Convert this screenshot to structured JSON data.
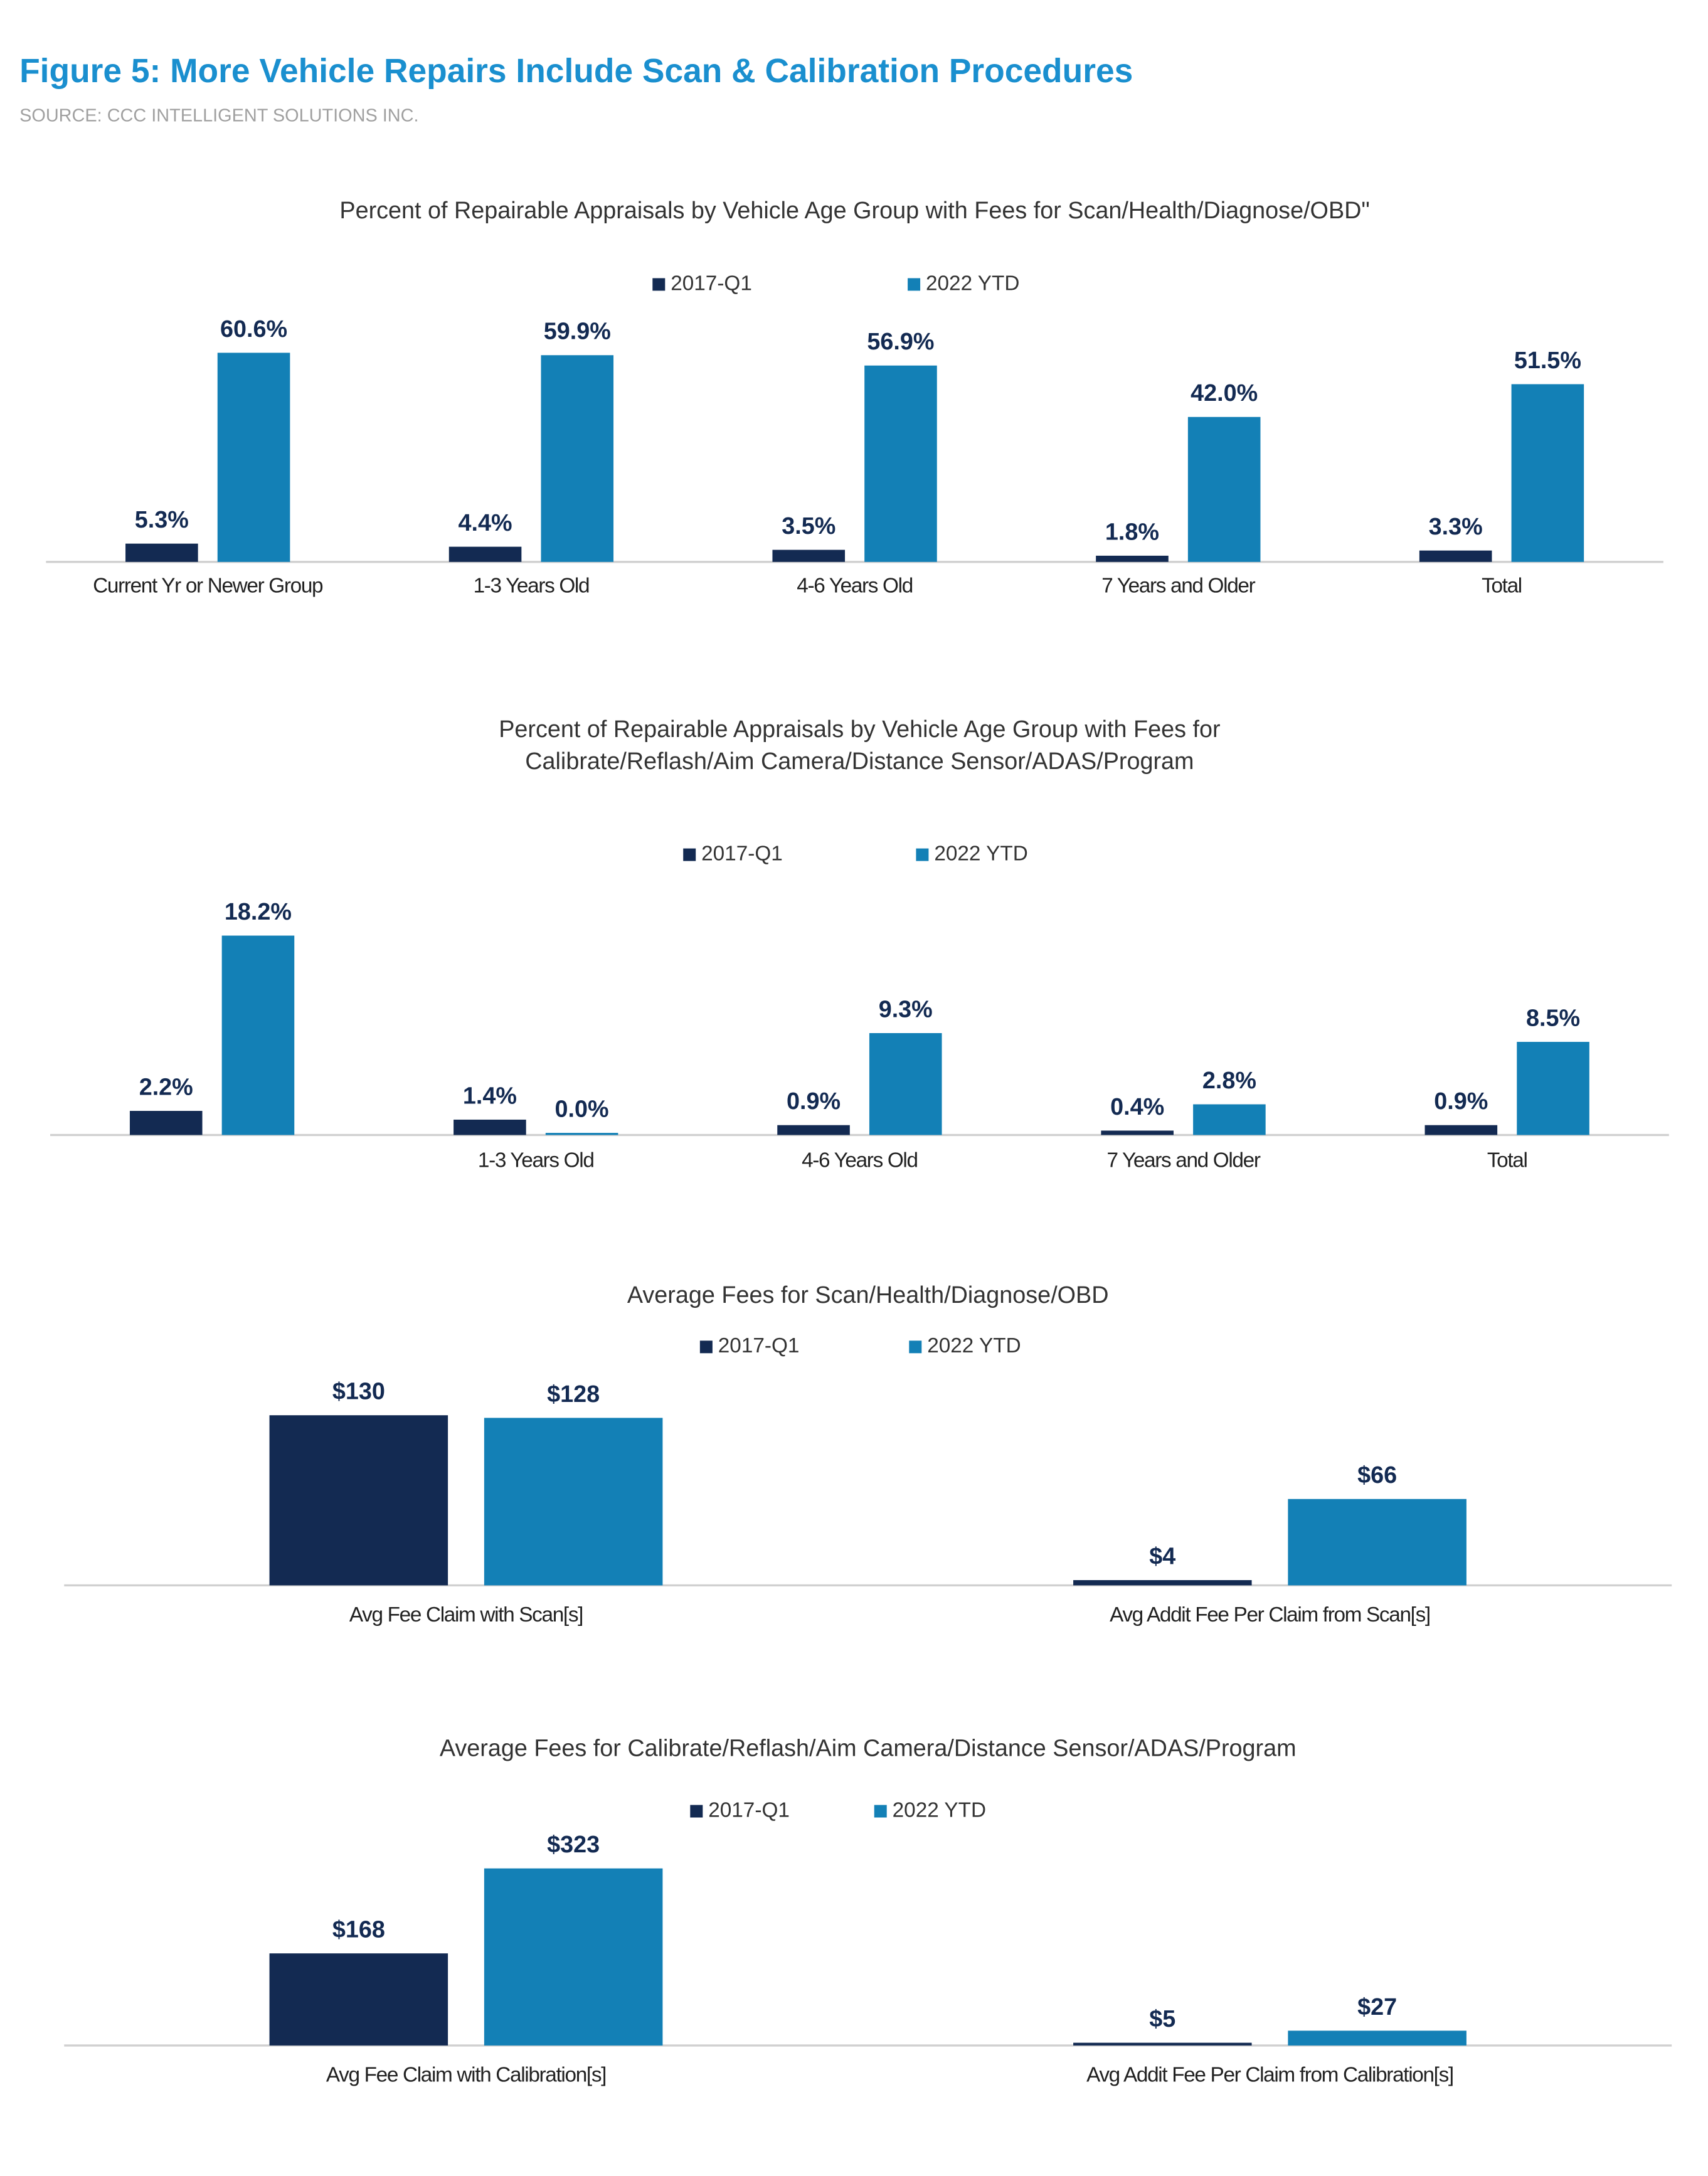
{
  "title": "Figure 5: More Vehicle Repairs Include Scan & Calibration Procedures",
  "source": "SOURCE: CCC INTELLIGENT SOLUTIONS INC.",
  "chart_data": [
    {
      "type": "bar",
      "title": "Percent of Repairable Appraisals by Vehicle Age Group with Fees for Scan/Health/Diagnose/OBD\"",
      "categories": [
        "Current Yr or Newer Group",
        "1-3 Years Old",
        "4-6 Years Old",
        "7 Years and Older",
        "Total"
      ],
      "series": [
        {
          "name": "2017-Q1",
          "color": "#132a52",
          "values": [
            5.3,
            4.4,
            3.5,
            1.8,
            3.3
          ],
          "value_labels": [
            "5.3%",
            "4.4%",
            "3.5%",
            "1.8%",
            "3.3%"
          ]
        },
        {
          "name": "2022 YTD",
          "color": "#1380b6",
          "values": [
            60.6,
            59.9,
            56.9,
            42.0,
            51.5
          ],
          "value_labels": [
            "60.6%",
            "59.9%",
            "56.9%",
            "42.0%",
            "51.5%"
          ]
        }
      ]
    },
    {
      "type": "bar",
      "title": [
        "Percent of Repairable Appraisals by Vehicle Age Group with Fees for",
        "Calibrate/Reflash/Aim Camera/Distance Sensor/ADAS/Program"
      ],
      "categories": [
        null,
        "1-3 Years Old",
        "4-6 Years Old",
        "7 Years and Older",
        "Total"
      ],
      "series": [
        {
          "name": "2017-Q1",
          "color": "#132a52",
          "values": [
            2.2,
            1.4,
            0.9,
            0.4,
            0.9
          ],
          "value_labels": [
            "2.2%",
            "1.4%",
            "0.9%",
            "0.4%",
            "0.9%"
          ]
        },
        {
          "name": "2022 YTD",
          "color": "#1380b6",
          "values": [
            18.2,
            0.0,
            9.3,
            2.8,
            8.5
          ],
          "value_labels": [
            "18.2%",
            "0.0%",
            "9.3%",
            "2.8%",
            "8.5%"
          ]
        }
      ]
    },
    {
      "type": "bar",
      "title": "Average Fees for Scan/Health/Diagnose/OBD",
      "categories": [
        "Avg Fee Claim with Scan[s]",
        "Avg Addit Fee Per Claim from Scan[s]"
      ],
      "series": [
        {
          "name": "2017-Q1",
          "color": "#132a52",
          "values": [
            130,
            4
          ],
          "value_labels": [
            "$130",
            "$4"
          ]
        },
        {
          "name": "2022 YTD",
          "color": "#1380b6",
          "values": [
            128,
            66
          ],
          "value_labels": [
            "$128",
            "$66"
          ]
        }
      ]
    },
    {
      "type": "bar",
      "title": "Average Fees for Calibrate/Reflash/Aim Camera/Distance Sensor/ADAS/Program",
      "categories": [
        "Avg Fee Claim with Calibration[s]",
        "Avg Addit Fee Per Claim from Calibration[s]"
      ],
      "series": [
        {
          "name": "2017-Q1",
          "color": "#132a52",
          "values": [
            168,
            5
          ],
          "value_labels": [
            "$168",
            "$5"
          ]
        },
        {
          "name": "2022 YTD",
          "color": "#1380b6",
          "values": [
            323,
            27
          ],
          "value_labels": [
            "$323",
            "$27"
          ]
        }
      ]
    }
  ]
}
